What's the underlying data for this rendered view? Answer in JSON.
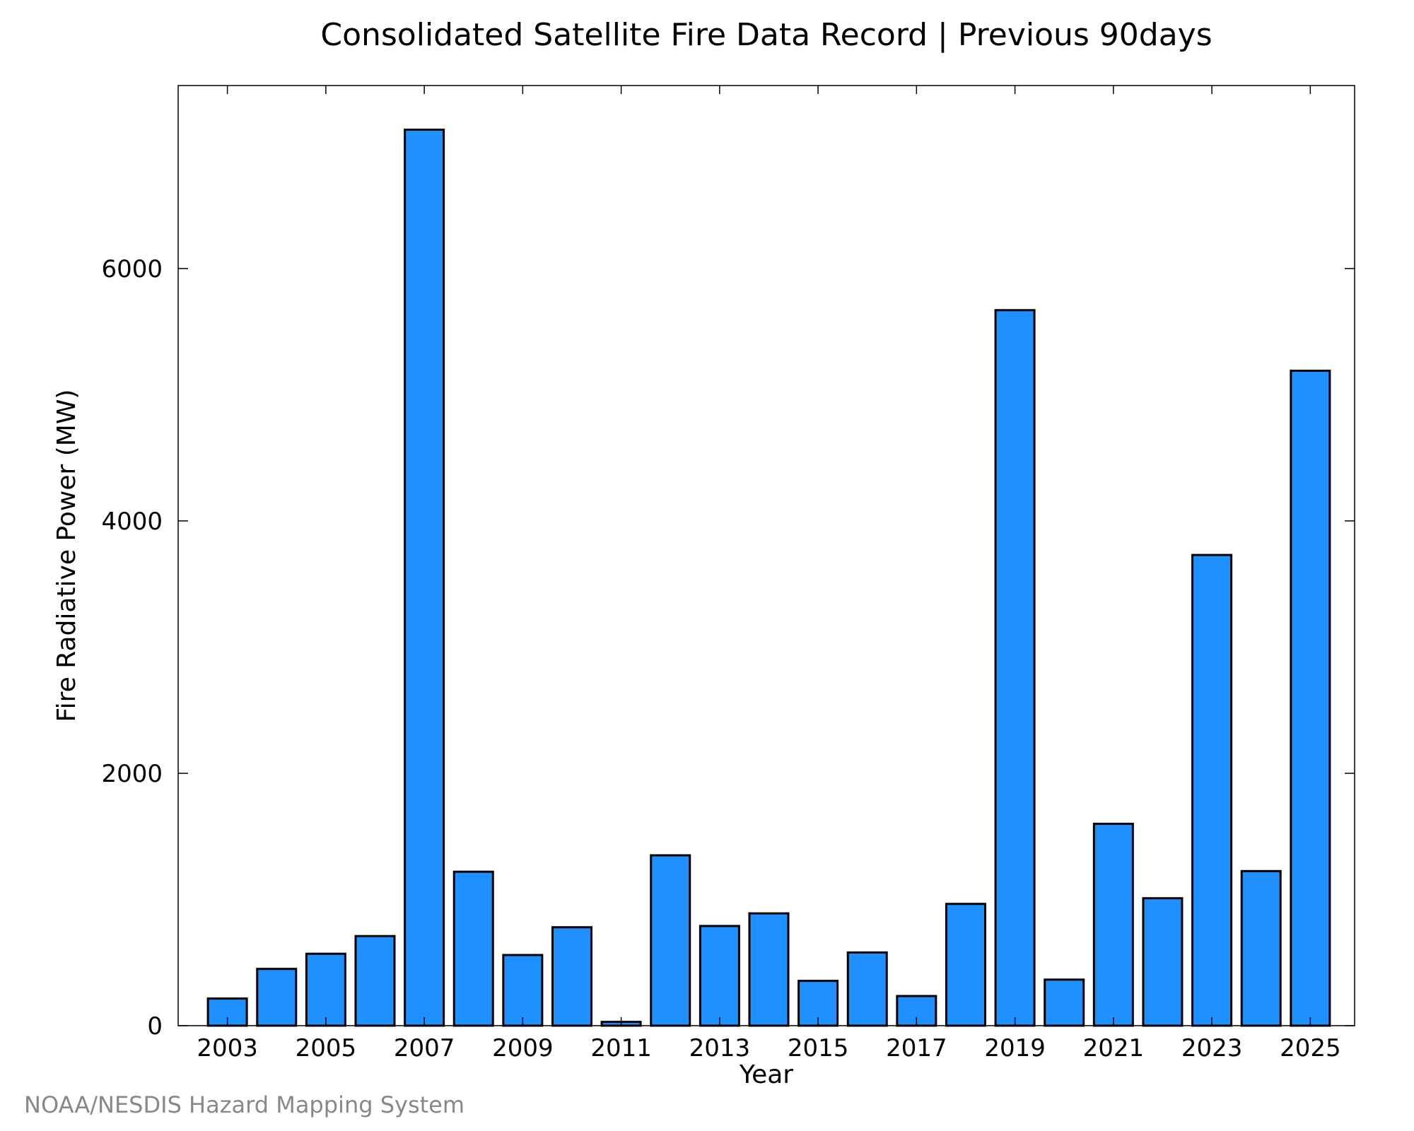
{
  "chart_data": {
    "type": "bar",
    "title": "Consolidated Satellite Fire Data Record | Previous 90days",
    "xlabel": "Year",
    "ylabel": "Fire Radiative Power (MW)",
    "categories": [
      2003,
      2004,
      2005,
      2006,
      2007,
      2008,
      2009,
      2010,
      2011,
      2012,
      2013,
      2014,
      2015,
      2016,
      2017,
      2018,
      2019,
      2020,
      2021,
      2022,
      2023,
      2024,
      2025
    ],
    "values": [
      215,
      450,
      570,
      710,
      7100,
      1220,
      560,
      780,
      30,
      1350,
      790,
      890,
      355,
      580,
      235,
      965,
      5670,
      365,
      1600,
      1010,
      3730,
      1225,
      5190
    ],
    "x_tick_labels": [
      "2003",
      "2005",
      "2007",
      "2009",
      "2011",
      "2013",
      "2015",
      "2017",
      "2019",
      "2021",
      "2023",
      "2025"
    ],
    "y_ticks": [
      0,
      2000,
      4000,
      6000
    ],
    "y_tick_labels": [
      "0",
      "2000",
      "4000",
      "6000"
    ],
    "ylim": [
      0,
      7450
    ],
    "xlim": [
      2002,
      2025.9
    ],
    "grid": false,
    "legend": "none",
    "colors": {
      "bar_fill": "#1e90ff",
      "bar_stroke": "#000000"
    }
  },
  "credit": "NOAA/NESDIS Hazard Mapping System"
}
